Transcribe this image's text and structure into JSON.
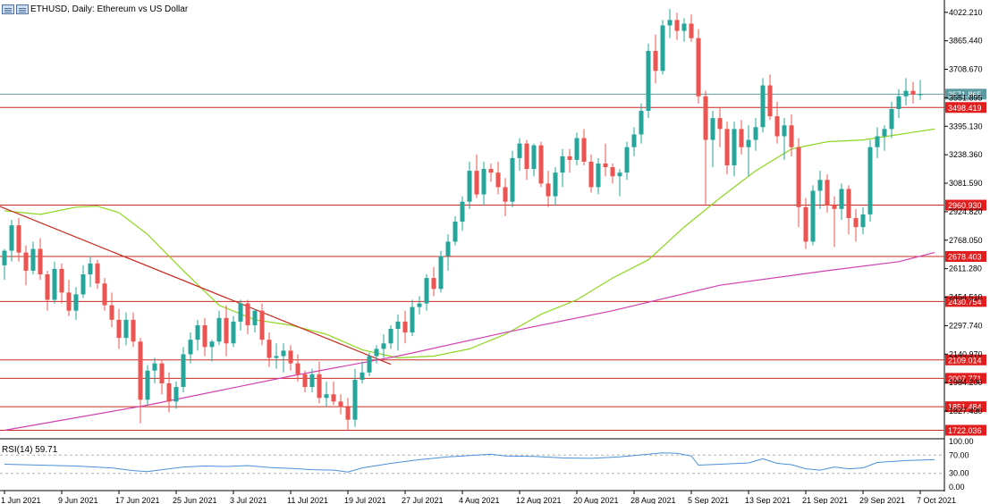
{
  "header": {
    "symbol": "ETHUSD, Daily:",
    "description": "Ethereum vs US Dollar"
  },
  "indicator": {
    "label": "RSI(14) 59.71"
  },
  "chart_data": {
    "type": "candlestick",
    "symbol": "ETHUSD",
    "timeframe": "Daily",
    "title": "Ethereum vs US Dollar",
    "ylim": [
      1680,
      4090
    ],
    "price_ticks": [
      "4022.210",
      "3865.440",
      "3708.670",
      "3551.895",
      "3395.130",
      "3238.360",
      "3081.590",
      "2924.820",
      "2768.050",
      "2611.280",
      "2454.510",
      "2297.740",
      "2140.970",
      "1984.200",
      "1827.430"
    ],
    "time_labels": [
      {
        "label": "1 Jun 2021",
        "index": 0
      },
      {
        "label": "9 Jun 2021",
        "index": 8
      },
      {
        "label": "17 Jun 2021",
        "index": 16
      },
      {
        "label": "25 Jun 2021",
        "index": 24
      },
      {
        "label": "3 Jul 2021",
        "index": 32
      },
      {
        "label": "11 Jul 2021",
        "index": 40
      },
      {
        "label": "19 Jul 2021",
        "index": 48
      },
      {
        "label": "27 Jul 2021",
        "index": 56
      },
      {
        "label": "4 Aug 2021",
        "index": 64
      },
      {
        "label": "12 Aug 2021",
        "index": 72
      },
      {
        "label": "20 Aug 2021",
        "index": 80
      },
      {
        "label": "28 Aug 2021",
        "index": 88
      },
      {
        "label": "5 Sep 2021",
        "index": 96
      },
      {
        "label": "13 Sep 2021",
        "index": 104
      },
      {
        "label": "21 Sep 2021",
        "index": 112
      },
      {
        "label": "29 Sep 2021",
        "index": 120
      },
      {
        "label": "7 Oct 2021",
        "index": 128
      }
    ],
    "current_price": {
      "value": 3571.865,
      "label": "3571.865",
      "color": "#5b9aa0"
    },
    "horizontal_levels": [
      {
        "value": 3498.419,
        "label": "3498.419"
      },
      {
        "value": 2960.93,
        "label": "2960.930"
      },
      {
        "value": 2678.403,
        "label": "2678.403"
      },
      {
        "value": 2430.754,
        "label": "2430.754"
      },
      {
        "value": 2109.014,
        "label": "2109.014"
      },
      {
        "value": 2007.771,
        "label": "2007.771"
      },
      {
        "value": 1851.484,
        "label": "1851.484"
      },
      {
        "value": 1722.036,
        "label": "1722.036"
      }
    ],
    "trendline": {
      "from": {
        "index": -1,
        "value": 2960
      },
      "to": {
        "index": 54,
        "value": 2085
      },
      "color": "#c8281e"
    },
    "moving_averages": [
      {
        "color": "#8fd620",
        "points": [
          [
            0,
            2930
          ],
          [
            5,
            2910
          ],
          [
            10,
            2950
          ],
          [
            13,
            2955
          ],
          [
            16,
            2920
          ],
          [
            20,
            2800
          ],
          [
            25,
            2600
          ],
          [
            30,
            2410
          ],
          [
            35,
            2330
          ],
          [
            40,
            2300
          ],
          [
            45,
            2250
          ],
          [
            50,
            2165
          ],
          [
            55,
            2120
          ],
          [
            60,
            2130
          ],
          [
            65,
            2170
          ],
          [
            70,
            2250
          ],
          [
            75,
            2360
          ],
          [
            80,
            2440
          ],
          [
            85,
            2560
          ],
          [
            90,
            2660
          ],
          [
            95,
            2840
          ],
          [
            100,
            3000
          ],
          [
            105,
            3150
          ],
          [
            110,
            3270
          ],
          [
            115,
            3310
          ],
          [
            120,
            3320
          ],
          [
            125,
            3350
          ],
          [
            130,
            3380
          ]
        ]
      },
      {
        "color": "#d040b0",
        "points": [
          [
            0,
            1722
          ],
          [
            20,
            1860
          ],
          [
            40,
            2020
          ],
          [
            55,
            2130
          ],
          [
            70,
            2260
          ],
          [
            85,
            2380
          ],
          [
            100,
            2520
          ],
          [
            115,
            2600
          ],
          [
            125,
            2650
          ],
          [
            130,
            2700
          ]
        ]
      }
    ],
    "candles": [
      [
        2630,
        2720,
        2550,
        2710
      ],
      [
        2710,
        2880,
        2650,
        2850
      ],
      [
        2850,
        2890,
        2650,
        2700
      ],
      [
        2700,
        2740,
        2520,
        2600
      ],
      [
        2600,
        2760,
        2580,
        2720
      ],
      [
        2720,
        2780,
        2550,
        2580
      ],
      [
        2580,
        2600,
        2380,
        2440
      ],
      [
        2440,
        2650,
        2420,
        2610
      ],
      [
        2610,
        2640,
        2420,
        2480
      ],
      [
        2480,
        2550,
        2350,
        2380
      ],
      [
        2380,
        2510,
        2330,
        2470
      ],
      [
        2470,
        2630,
        2450,
        2580
      ],
      [
        2580,
        2680,
        2510,
        2640
      ],
      [
        2640,
        2660,
        2500,
        2530
      ],
      [
        2530,
        2560,
        2380,
        2410
      ],
      [
        2410,
        2480,
        2290,
        2330
      ],
      [
        2330,
        2390,
        2170,
        2230
      ],
      [
        2230,
        2370,
        2190,
        2330
      ],
      [
        2330,
        2370,
        2180,
        2210
      ],
      [
        2210,
        2230,
        1760,
        1890
      ],
      [
        1890,
        2080,
        1860,
        2050
      ],
      [
        2050,
        2120,
        1980,
        2090
      ],
      [
        2090,
        2110,
        1920,
        1980
      ],
      [
        1980,
        2040,
        1820,
        1880
      ],
      [
        1880,
        1990,
        1840,
        1960
      ],
      [
        1960,
        2180,
        1930,
        2140
      ],
      [
        2140,
        2260,
        2090,
        2220
      ],
      [
        2220,
        2330,
        2160,
        2300
      ],
      [
        2300,
        2340,
        2130,
        2180
      ],
      [
        2180,
        2220,
        2100,
        2210
      ],
      [
        2210,
        2380,
        2190,
        2340
      ],
      [
        2340,
        2410,
        2130,
        2200
      ],
      [
        2200,
        2350,
        2180,
        2320
      ],
      [
        2320,
        2440,
        2270,
        2420
      ],
      [
        2420,
        2440,
        2250,
        2300
      ],
      [
        2300,
        2390,
        2260,
        2380
      ],
      [
        2380,
        2420,
        2190,
        2220
      ],
      [
        2220,
        2260,
        2070,
        2120
      ],
      [
        2120,
        2200,
        2060,
        2130
      ],
      [
        2130,
        2200,
        2040,
        2160
      ],
      [
        2160,
        2190,
        2050,
        2090
      ],
      [
        2090,
        2140,
        1990,
        2030
      ],
      [
        2030,
        2050,
        1930,
        1960
      ],
      [
        1960,
        2060,
        1930,
        2030
      ],
      [
        2030,
        2100,
        1870,
        1900
      ],
      [
        1900,
        1990,
        1850,
        1920
      ],
      [
        1920,
        1990,
        1860,
        1880
      ],
      [
        1880,
        1920,
        1810,
        1850
      ],
      [
        1850,
        1900,
        1720,
        1780
      ],
      [
        1780,
        2060,
        1740,
        2000
      ],
      [
        2000,
        2100,
        1980,
        2040
      ],
      [
        2040,
        2150,
        2020,
        2130
      ],
      [
        2130,
        2190,
        2090,
        2170
      ],
      [
        2170,
        2250,
        2120,
        2200
      ],
      [
        2200,
        2300,
        2170,
        2280
      ],
      [
        2280,
        2360,
        2160,
        2320
      ],
      [
        2320,
        2380,
        2200,
        2260
      ],
      [
        2260,
        2440,
        2240,
        2400
      ],
      [
        2400,
        2460,
        2360,
        2420
      ],
      [
        2420,
        2580,
        2380,
        2560
      ],
      [
        2560,
        2620,
        2460,
        2500
      ],
      [
        2500,
        2710,
        2480,
        2680
      ],
      [
        2680,
        2800,
        2600,
        2760
      ],
      [
        2760,
        2900,
        2740,
        2870
      ],
      [
        2870,
        3010,
        2820,
        2980
      ],
      [
        2980,
        3200,
        2940,
        3150
      ],
      [
        3150,
        3240,
        3000,
        3020
      ],
      [
        3020,
        3200,
        2960,
        3160
      ],
      [
        3160,
        3190,
        3090,
        3140
      ],
      [
        3140,
        3200,
        3020,
        3060
      ],
      [
        3060,
        3110,
        2900,
        2980
      ],
      [
        2980,
        3260,
        2950,
        3220
      ],
      [
        3220,
        3330,
        3150,
        3300
      ],
      [
        3300,
        3320,
        3100,
        3160
      ],
      [
        3160,
        3300,
        3120,
        3290
      ],
      [
        3290,
        3310,
        3060,
        3080
      ],
      [
        3080,
        3150,
        2950,
        3010
      ],
      [
        3010,
        3170,
        2960,
        3140
      ],
      [
        3140,
        3270,
        3060,
        3230
      ],
      [
        3230,
        3270,
        3140,
        3210
      ],
      [
        3210,
        3360,
        3180,
        3330
      ],
      [
        3330,
        3380,
        3180,
        3200
      ],
      [
        3200,
        3240,
        3030,
        3060
      ],
      [
        3060,
        3220,
        3020,
        3190
      ],
      [
        3190,
        3300,
        3120,
        3170
      ],
      [
        3170,
        3190,
        3080,
        3120
      ],
      [
        3120,
        3160,
        3010,
        3140
      ],
      [
        3140,
        3310,
        3100,
        3280
      ],
      [
        3280,
        3390,
        3230,
        3350
      ],
      [
        3350,
        3520,
        3300,
        3480
      ],
      [
        3480,
        3850,
        3440,
        3810
      ],
      [
        3810,
        3900,
        3630,
        3700
      ],
      [
        3700,
        3980,
        3680,
        3950
      ],
      [
        3950,
        4040,
        3880,
        3980
      ],
      [
        3980,
        4020,
        3870,
        3920
      ],
      [
        3920,
        3990,
        3860,
        3960
      ],
      [
        3960,
        4010,
        3860,
        3880
      ],
      [
        3880,
        3930,
        3520,
        3560
      ],
      [
        3560,
        3590,
        2960,
        3320
      ],
      [
        3320,
        3480,
        3170,
        3440
      ],
      [
        3440,
        3500,
        3280,
        3380
      ],
      [
        3380,
        3420,
        3130,
        3180
      ],
      [
        3180,
        3420,
        3120,
        3380
      ],
      [
        3380,
        3430,
        3240,
        3280
      ],
      [
        3280,
        3400,
        3120,
        3320
      ],
      [
        3320,
        3440,
        3260,
        3390
      ],
      [
        3390,
        3660,
        3360,
        3620
      ],
      [
        3620,
        3680,
        3430,
        3450
      ],
      [
        3450,
        3530,
        3300,
        3340
      ],
      [
        3340,
        3440,
        3210,
        3400
      ],
      [
        3400,
        3460,
        3230,
        3280
      ],
      [
        3280,
        3330,
        2840,
        2950
      ],
      [
        2950,
        3000,
        2720,
        2760
      ],
      [
        2760,
        3070,
        2740,
        3040
      ],
      [
        3040,
        3150,
        2940,
        3100
      ],
      [
        3100,
        3130,
        2920,
        2960
      ],
      [
        2960,
        3010,
        2730,
        2940
      ],
      [
        2940,
        3080,
        2880,
        3050
      ],
      [
        3050,
        3070,
        2800,
        2890
      ],
      [
        2890,
        2940,
        2760,
        2840
      ],
      [
        2840,
        2950,
        2800,
        2910
      ],
      [
        2910,
        3320,
        2870,
        3280
      ],
      [
        3280,
        3390,
        3220,
        3340
      ],
      [
        3340,
        3400,
        3260,
        3380
      ],
      [
        3380,
        3530,
        3330,
        3490
      ],
      [
        3490,
        3600,
        3440,
        3560
      ],
      [
        3560,
        3660,
        3510,
        3590
      ],
      [
        3590,
        3640,
        3520,
        3570
      ],
      [
        3570,
        3650,
        3540,
        3571
      ]
    ],
    "rsi": {
      "value": 59.71,
      "ticks": [
        "100.00",
        "70.00",
        "30.00",
        "0.00"
      ],
      "points": [
        [
          0,
          50
        ],
        [
          5,
          48
        ],
        [
          10,
          46
        ],
        [
          15,
          42
        ],
        [
          18,
          36
        ],
        [
          20,
          34
        ],
        [
          22,
          38
        ],
        [
          25,
          44
        ],
        [
          28,
          46
        ],
        [
          31,
          45
        ],
        [
          34,
          47
        ],
        [
          37,
          43
        ],
        [
          40,
          41
        ],
        [
          43,
          38
        ],
        [
          46,
          37
        ],
        [
          48,
          33
        ],
        [
          50,
          42
        ],
        [
          54,
          52
        ],
        [
          58,
          60
        ],
        [
          62,
          66
        ],
        [
          66,
          70
        ],
        [
          68,
          72
        ],
        [
          70,
          68
        ],
        [
          74,
          67
        ],
        [
          78,
          64
        ],
        [
          82,
          63
        ],
        [
          86,
          66
        ],
        [
          90,
          72
        ],
        [
          92,
          75
        ],
        [
          94,
          74
        ],
        [
          96,
          68
        ],
        [
          97,
          48
        ],
        [
          100,
          50
        ],
        [
          104,
          53
        ],
        [
          106,
          62
        ],
        [
          108,
          52
        ],
        [
          110,
          49
        ],
        [
          112,
          40
        ],
        [
          114,
          37
        ],
        [
          116,
          44
        ],
        [
          118,
          40
        ],
        [
          120,
          42
        ],
        [
          122,
          54
        ],
        [
          126,
          58
        ],
        [
          130,
          60
        ]
      ]
    }
  }
}
